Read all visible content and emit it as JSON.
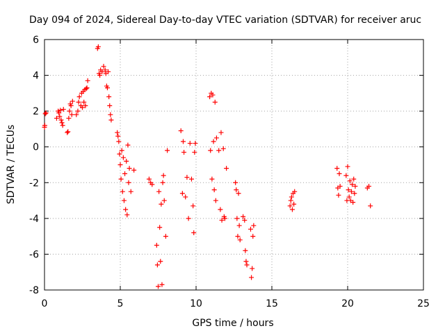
{
  "chart_data": {
    "type": "scatter",
    "title": "Day 094 of 2024, Sidereal Day-to-day VTEC variation (SDTVAR) for receiver aruc",
    "xlabel": "GPS time / hours",
    "ylabel": "SDTVAR / TECUs",
    "xlim": [
      0,
      25
    ],
    "ylim": [
      -8,
      6
    ],
    "xticks": [
      0,
      5,
      10,
      15,
      20,
      25
    ],
    "yticks": [
      -8,
      -6,
      -4,
      -2,
      0,
      2,
      4,
      6
    ],
    "grid": true,
    "marker": "+",
    "series": [
      {
        "name": "SDTVAR",
        "color": "#ff0000",
        "points": [
          [
            0.0,
            1.1
          ],
          [
            0.02,
            1.2
          ],
          [
            0.05,
            1.85
          ],
          [
            0.1,
            1.9
          ],
          [
            0.8,
            1.6
          ],
          [
            0.9,
            2.0
          ],
          [
            0.95,
            1.9
          ],
          [
            1.0,
            1.7
          ],
          [
            1.05,
            2.05
          ],
          [
            1.1,
            1.5
          ],
          [
            1.15,
            1.35
          ],
          [
            1.2,
            1.2
          ],
          [
            1.25,
            2.1
          ],
          [
            1.5,
            0.8
          ],
          [
            1.55,
            0.85
          ],
          [
            1.6,
            1.6
          ],
          [
            1.65,
            2.0
          ],
          [
            1.7,
            2.4
          ],
          [
            1.75,
            2.3
          ],
          [
            1.8,
            1.8
          ],
          [
            1.85,
            2.55
          ],
          [
            2.1,
            1.8
          ],
          [
            2.2,
            2.0
          ],
          [
            2.25,
            2.5
          ],
          [
            2.3,
            2.8
          ],
          [
            2.4,
            2.3
          ],
          [
            2.45,
            3.0
          ],
          [
            2.5,
            2.2
          ],
          [
            2.55,
            3.1
          ],
          [
            2.6,
            2.5
          ],
          [
            2.65,
            3.2
          ],
          [
            2.7,
            2.3
          ],
          [
            2.75,
            3.25
          ],
          [
            2.8,
            3.3
          ],
          [
            2.85,
            3.7
          ],
          [
            3.5,
            5.5
          ],
          [
            3.55,
            5.6
          ],
          [
            3.6,
            4.1
          ],
          [
            3.65,
            4.0
          ],
          [
            3.7,
            4.3
          ],
          [
            3.8,
            4.2
          ],
          [
            3.9,
            4.5
          ],
          [
            4.0,
            4.3
          ],
          [
            4.05,
            4.1
          ],
          [
            4.1,
            3.4
          ],
          [
            4.15,
            3.3
          ],
          [
            4.2,
            4.2
          ],
          [
            4.25,
            2.8
          ],
          [
            4.3,
            2.3
          ],
          [
            4.35,
            1.8
          ],
          [
            4.4,
            1.5
          ],
          [
            4.8,
            0.8
          ],
          [
            4.85,
            0.6
          ],
          [
            4.9,
            0.3
          ],
          [
            4.95,
            -0.4
          ],
          [
            5.0,
            -1.0
          ],
          [
            5.05,
            -1.8
          ],
          [
            5.1,
            -0.2
          ],
          [
            5.15,
            -2.5
          ],
          [
            5.2,
            -0.6
          ],
          [
            5.25,
            -3.0
          ],
          [
            5.3,
            -1.5
          ],
          [
            5.35,
            -3.5
          ],
          [
            5.4,
            -0.8
          ],
          [
            5.45,
            -3.8
          ],
          [
            5.5,
            0.1
          ],
          [
            5.55,
            -2.0
          ],
          [
            5.6,
            -1.2
          ],
          [
            5.7,
            -2.5
          ],
          [
            5.9,
            -1.3
          ],
          [
            6.9,
            -1.8
          ],
          [
            7.0,
            -2.0
          ],
          [
            7.1,
            -2.1
          ],
          [
            7.4,
            -5.5
          ],
          [
            7.45,
            -6.6
          ],
          [
            7.5,
            -7.8
          ],
          [
            7.55,
            -2.5
          ],
          [
            7.6,
            -4.5
          ],
          [
            7.65,
            -6.4
          ],
          [
            7.7,
            -3.2
          ],
          [
            7.75,
            -7.7
          ],
          [
            7.8,
            -2.0
          ],
          [
            7.85,
            -1.6
          ],
          [
            7.9,
            -3.0
          ],
          [
            8.0,
            -5.0
          ],
          [
            8.1,
            -0.2
          ],
          [
            9.0,
            0.9
          ],
          [
            9.1,
            -2.6
          ],
          [
            9.15,
            0.3
          ],
          [
            9.2,
            -0.3
          ],
          [
            9.3,
            -2.8
          ],
          [
            9.4,
            -1.7
          ],
          [
            9.5,
            -4.0
          ],
          [
            9.6,
            0.2
          ],
          [
            9.7,
            -1.8
          ],
          [
            9.8,
            -3.3
          ],
          [
            9.85,
            -4.8
          ],
          [
            9.9,
            -0.3
          ],
          [
            9.95,
            0.2
          ],
          [
            10.9,
            2.8
          ],
          [
            10.95,
            -0.2
          ],
          [
            11.0,
            3.0
          ],
          [
            11.05,
            -1.8
          ],
          [
            11.1,
            2.9
          ],
          [
            11.15,
            0.3
          ],
          [
            11.2,
            -2.4
          ],
          [
            11.25,
            2.5
          ],
          [
            11.3,
            -3.0
          ],
          [
            11.35,
            0.5
          ],
          [
            11.5,
            -0.2
          ],
          [
            11.6,
            -3.5
          ],
          [
            11.65,
            0.8
          ],
          [
            11.7,
            -4.1
          ],
          [
            11.8,
            -0.1
          ],
          [
            11.85,
            -3.9
          ],
          [
            11.9,
            -4.0
          ],
          [
            12.0,
            -1.2
          ],
          [
            12.6,
            -2.0
          ],
          [
            12.65,
            -2.4
          ],
          [
            12.7,
            -4.0
          ],
          [
            12.75,
            -5.0
          ],
          [
            12.8,
            -2.6
          ],
          [
            12.85,
            -4.4
          ],
          [
            12.9,
            -5.2
          ],
          [
            13.1,
            -3.9
          ],
          [
            13.2,
            -4.1
          ],
          [
            13.25,
            -5.8
          ],
          [
            13.3,
            -6.4
          ],
          [
            13.35,
            -6.6
          ],
          [
            13.6,
            -4.6
          ],
          [
            13.65,
            -7.3
          ],
          [
            13.7,
            -6.8
          ],
          [
            13.75,
            -5.0
          ],
          [
            13.8,
            -4.4
          ],
          [
            16.2,
            -3.3
          ],
          [
            16.25,
            -3.0
          ],
          [
            16.3,
            -2.8
          ],
          [
            16.35,
            -3.5
          ],
          [
            16.4,
            -2.6
          ],
          [
            16.45,
            -3.2
          ],
          [
            16.5,
            -2.5
          ],
          [
            19.3,
            -1.2
          ],
          [
            19.35,
            -2.3
          ],
          [
            19.4,
            -2.7
          ],
          [
            19.45,
            -1.5
          ],
          [
            19.5,
            -2.2
          ],
          [
            19.9,
            -1.6
          ],
          [
            19.95,
            -3.0
          ],
          [
            20.0,
            -1.1
          ],
          [
            20.05,
            -2.4
          ],
          [
            20.1,
            -2.8
          ],
          [
            20.15,
            -1.9
          ],
          [
            20.2,
            -3.0
          ],
          [
            20.25,
            -2.5
          ],
          [
            20.3,
            -2.1
          ],
          [
            20.35,
            -3.1
          ],
          [
            20.4,
            -1.8
          ],
          [
            20.45,
            -2.6
          ],
          [
            20.5,
            -2.2
          ],
          [
            21.3,
            -2.3
          ],
          [
            21.4,
            -2.2
          ],
          [
            21.5,
            -3.3
          ]
        ]
      }
    ]
  }
}
